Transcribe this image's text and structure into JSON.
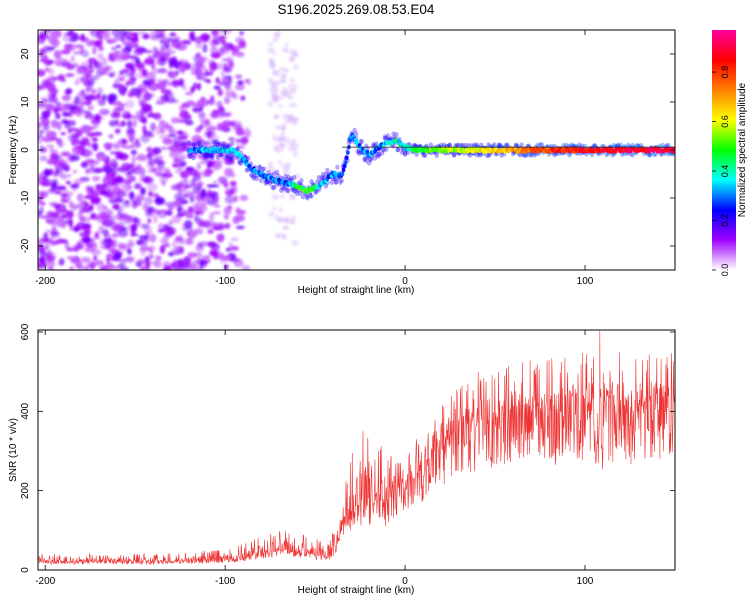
{
  "figure_title": "S196.2025.269.08.53.E04",
  "chart_data": [
    {
      "type": "heatmap",
      "title": "S196.2025.269.08.53.E04",
      "xlabel": "Height of straight line (km)",
      "ylabel": "Frequency (Hz)",
      "xlim": [
        -204,
        150
      ],
      "ylim": [
        -25,
        25
      ],
      "xticks": [
        -200,
        -100,
        0,
        100
      ],
      "yticks": [
        -20,
        -10,
        0,
        10,
        20
      ],
      "colorbar": {
        "label": "Normalized spectral amplitude",
        "range": [
          0,
          0.97
        ],
        "ticks": [
          0,
          0.2,
          0.4,
          0.6,
          0.8
        ],
        "tick_labels": [
          "0.0",
          "0.2",
          "0.4",
          "0.6",
          "0.8"
        ],
        "colors": [
          "#ffffff",
          "#a000ff",
          "#0000ff",
          "#00ffff",
          "#00ff00",
          "#ffff00",
          "#ff8000",
          "#ff0000",
          "#ff00a0"
        ]
      },
      "ridge": {
        "x": [
          -120,
          -105,
          -95,
          -90,
          -85,
          -80,
          -75,
          -70,
          -65,
          -60,
          -55,
          -50,
          -45,
          -40,
          -35,
          -32,
          -30,
          -28,
          -25,
          -22,
          -20,
          -18,
          -15,
          -10,
          -5,
          0,
          5,
          10,
          20,
          40,
          60,
          80,
          100,
          120,
          150
        ],
        "y": [
          0,
          0,
          0,
          -2,
          -4,
          -5,
          -6,
          -6.5,
          -7,
          -7.5,
          -8.5,
          -8,
          -6.5,
          -5,
          -5.5,
          -1,
          3,
          2.5,
          0.5,
          -0.5,
          -1,
          -0.5,
          0.5,
          1.5,
          2,
          0.5,
          0,
          0,
          0,
          0,
          0,
          0,
          0,
          0,
          0
        ],
        "amplitude": [
          0.3,
          0.35,
          0.35,
          0.3,
          0.3,
          0.3,
          0.3,
          0.3,
          0.3,
          0.45,
          0.5,
          0.45,
          0.3,
          0.3,
          0.3,
          0.25,
          0.3,
          0.3,
          0.3,
          0.3,
          0.3,
          0.3,
          0.3,
          0.35,
          0.4,
          0.35,
          0.45,
          0.5,
          0.55,
          0.6,
          0.7,
          0.8,
          0.85,
          0.88,
          0.9
        ]
      },
      "noise_region": {
        "x_from": -204,
        "x_to": -95,
        "amplitude_range": [
          0.05,
          0.3
        ]
      }
    },
    {
      "type": "line",
      "xlabel": "Height of straight line (km)",
      "ylabel": "SNR (10 * v/v)",
      "xlim": [
        -204,
        150
      ],
      "ylim": [
        0,
        605
      ],
      "xticks": [
        -200,
        -100,
        0,
        100
      ],
      "yticks": [
        0,
        200,
        400,
        600
      ],
      "color": "#ee3333",
      "series": [
        {
          "name": "SNR",
          "x": [
            -204,
            -190,
            -175,
            -160,
            -145,
            -130,
            -115,
            -100,
            -90,
            -80,
            -70,
            -60,
            -50,
            -42,
            -38,
            -35,
            -30,
            -25,
            -20,
            -15,
            -10,
            -5,
            0,
            5,
            10,
            15,
            20,
            25,
            30,
            35,
            40,
            50,
            60,
            70,
            80,
            90,
            100,
            110,
            120,
            130,
            140,
            150
          ],
          "y": [
            22,
            20,
            21,
            21,
            20,
            21,
            22,
            24,
            30,
            42,
            50,
            45,
            38,
            32,
            60,
            110,
            150,
            130,
            160,
            170,
            165,
            200,
            215,
            230,
            260,
            300,
            320,
            340,
            355,
            365,
            375,
            382,
            385,
            388,
            390,
            392,
            395,
            398,
            400,
            402,
            405,
            410
          ],
          "peak_envelope": [
            42,
            40,
            42,
            40,
            42,
            44,
            48,
            52,
            66,
            88,
            100,
            98,
            82,
            72,
            120,
            205,
            290,
            370,
            390,
            320,
            300,
            290,
            300,
            320,
            360,
            390,
            420,
            450,
            470,
            490,
            500,
            510,
            520,
            530,
            540,
            545,
            550,
            560,
            555,
            550,
            550,
            550
          ]
        }
      ]
    }
  ]
}
